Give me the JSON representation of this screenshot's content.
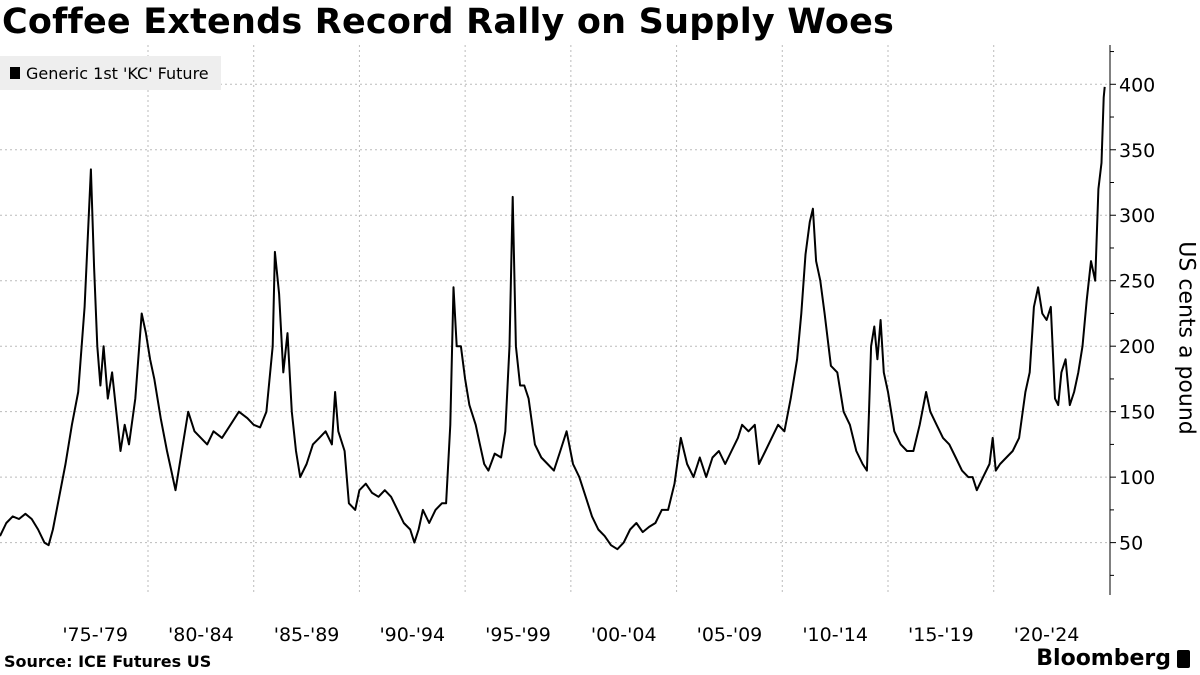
{
  "title": "Coffee Extends Record Rally on Supply Woes",
  "legend_label": "Generic 1st 'KC' Future",
  "source": "Source: ICE Futures US",
  "logo_text": "Bloomberg",
  "chart_data": {
    "type": "line",
    "title": "Coffee Extends Record Rally on Supply Woes",
    "ylabel": "US cents a pound",
    "xlabel": "",
    "ylim": [
      10,
      430
    ],
    "xlim": [
      1973.0,
      2025.5
    ],
    "yticks": [
      50,
      100,
      150,
      200,
      250,
      300,
      350,
      400
    ],
    "x_ticks": [
      {
        "label": "'75-'79",
        "value": 1975
      },
      {
        "label": "'80-'84",
        "value": 1980
      },
      {
        "label": "'85-'89",
        "value": 1985
      },
      {
        "label": "'90-'94",
        "value": 1990
      },
      {
        "label": "'95-'99",
        "value": 1995
      },
      {
        "label": "'00-'04",
        "value": 2000
      },
      {
        "label": "'05-'09",
        "value": 2005
      },
      {
        "label": "'10-'14",
        "value": 2010
      },
      {
        "label": "'15-'19",
        "value": 2015
      },
      {
        "label": "'20-'24",
        "value": 2020
      }
    ],
    "grid": true,
    "legend_position": "top-left",
    "line_color": "#000000",
    "series": [
      {
        "name": "Generic 1st 'KC' Future",
        "points": [
          [
            1973.0,
            55
          ],
          [
            1973.3,
            65
          ],
          [
            1973.6,
            70
          ],
          [
            1973.9,
            68
          ],
          [
            1974.2,
            72
          ],
          [
            1974.5,
            68
          ],
          [
            1974.8,
            60
          ],
          [
            1975.1,
            50
          ],
          [
            1975.3,
            48
          ],
          [
            1975.5,
            60
          ],
          [
            1975.8,
            85
          ],
          [
            1976.1,
            110
          ],
          [
            1976.4,
            140
          ],
          [
            1976.7,
            165
          ],
          [
            1977.0,
            230
          ],
          [
            1977.2,
            300
          ],
          [
            1977.3,
            335
          ],
          [
            1977.45,
            260
          ],
          [
            1977.6,
            200
          ],
          [
            1977.75,
            170
          ],
          [
            1977.9,
            200
          ],
          [
            1978.1,
            160
          ],
          [
            1978.3,
            180
          ],
          [
            1978.5,
            150
          ],
          [
            1978.7,
            120
          ],
          [
            1978.9,
            140
          ],
          [
            1979.1,
            125
          ],
          [
            1979.4,
            160
          ],
          [
            1979.7,
            225
          ],
          [
            1979.9,
            210
          ],
          [
            1980.1,
            190
          ],
          [
            1980.3,
            175
          ],
          [
            1980.6,
            145
          ],
          [
            1980.9,
            120
          ],
          [
            1981.1,
            105
          ],
          [
            1981.3,
            90
          ],
          [
            1981.6,
            120
          ],
          [
            1981.9,
            150
          ],
          [
            1982.2,
            135
          ],
          [
            1982.5,
            130
          ],
          [
            1982.8,
            125
          ],
          [
            1983.1,
            135
          ],
          [
            1983.5,
            130
          ],
          [
            1983.9,
            140
          ],
          [
            1984.3,
            150
          ],
          [
            1984.7,
            145
          ],
          [
            1985.0,
            140
          ],
          [
            1985.3,
            138
          ],
          [
            1985.6,
            150
          ],
          [
            1985.9,
            200
          ],
          [
            1986.0,
            272
          ],
          [
            1986.2,
            240
          ],
          [
            1986.4,
            180
          ],
          [
            1986.6,
            210
          ],
          [
            1986.8,
            150
          ],
          [
            1987.0,
            120
          ],
          [
            1987.2,
            100
          ],
          [
            1987.5,
            110
          ],
          [
            1987.8,
            125
          ],
          [
            1988.1,
            130
          ],
          [
            1988.4,
            135
          ],
          [
            1988.7,
            125
          ],
          [
            1988.85,
            165
          ],
          [
            1989.0,
            135
          ],
          [
            1989.3,
            120
          ],
          [
            1989.5,
            80
          ],
          [
            1989.8,
            75
          ],
          [
            1990.0,
            90
          ],
          [
            1990.3,
            95
          ],
          [
            1990.6,
            88
          ],
          [
            1990.9,
            85
          ],
          [
            1991.2,
            90
          ],
          [
            1991.5,
            85
          ],
          [
            1991.8,
            75
          ],
          [
            1992.1,
            65
          ],
          [
            1992.4,
            60
          ],
          [
            1992.6,
            50
          ],
          [
            1992.8,
            60
          ],
          [
            1993.0,
            75
          ],
          [
            1993.3,
            65
          ],
          [
            1993.6,
            75
          ],
          [
            1993.9,
            80
          ],
          [
            1994.1,
            80
          ],
          [
            1994.3,
            140
          ],
          [
            1994.45,
            245
          ],
          [
            1994.6,
            200
          ],
          [
            1994.8,
            200
          ],
          [
            1995.0,
            175
          ],
          [
            1995.2,
            155
          ],
          [
            1995.5,
            140
          ],
          [
            1995.7,
            125
          ],
          [
            1995.9,
            110
          ],
          [
            1996.1,
            105
          ],
          [
            1996.4,
            118
          ],
          [
            1996.7,
            115
          ],
          [
            1996.9,
            135
          ],
          [
            1997.1,
            200
          ],
          [
            1997.25,
            314
          ],
          [
            1997.4,
            200
          ],
          [
            1997.6,
            170
          ],
          [
            1997.8,
            170
          ],
          [
            1998.0,
            160
          ],
          [
            1998.3,
            125
          ],
          [
            1998.6,
            115
          ],
          [
            1998.9,
            110
          ],
          [
            1999.2,
            105
          ],
          [
            1999.5,
            120
          ],
          [
            1999.8,
            135
          ],
          [
            2000.1,
            110
          ],
          [
            2000.4,
            100
          ],
          [
            2000.7,
            85
          ],
          [
            2001.0,
            70
          ],
          [
            2001.3,
            60
          ],
          [
            2001.6,
            55
          ],
          [
            2001.9,
            48
          ],
          [
            2002.2,
            45
          ],
          [
            2002.5,
            50
          ],
          [
            2002.8,
            60
          ],
          [
            2003.1,
            65
          ],
          [
            2003.4,
            58
          ],
          [
            2003.7,
            62
          ],
          [
            2004.0,
            65
          ],
          [
            2004.3,
            75
          ],
          [
            2004.6,
            75
          ],
          [
            2004.9,
            95
          ],
          [
            2005.2,
            130
          ],
          [
            2005.5,
            110
          ],
          [
            2005.8,
            100
          ],
          [
            2006.1,
            115
          ],
          [
            2006.4,
            100
          ],
          [
            2006.7,
            115
          ],
          [
            2007.0,
            120
          ],
          [
            2007.3,
            110
          ],
          [
            2007.6,
            120
          ],
          [
            2007.9,
            130
          ],
          [
            2008.1,
            140
          ],
          [
            2008.4,
            135
          ],
          [
            2008.7,
            140
          ],
          [
            2008.9,
            110
          ],
          [
            2009.2,
            120
          ],
          [
            2009.5,
            130
          ],
          [
            2009.8,
            140
          ],
          [
            2010.1,
            135
          ],
          [
            2010.4,
            160
          ],
          [
            2010.7,
            190
          ],
          [
            2010.9,
            225
          ],
          [
            2011.1,
            270
          ],
          [
            2011.3,
            295
          ],
          [
            2011.45,
            305
          ],
          [
            2011.6,
            265
          ],
          [
            2011.8,
            250
          ],
          [
            2012.0,
            225
          ],
          [
            2012.3,
            185
          ],
          [
            2012.6,
            180
          ],
          [
            2012.9,
            150
          ],
          [
            2013.2,
            140
          ],
          [
            2013.5,
            120
          ],
          [
            2013.8,
            110
          ],
          [
            2014.0,
            105
          ],
          [
            2014.1,
            150
          ],
          [
            2014.2,
            200
          ],
          [
            2014.35,
            215
          ],
          [
            2014.5,
            190
          ],
          [
            2014.65,
            220
          ],
          [
            2014.8,
            180
          ],
          [
            2015.0,
            165
          ],
          [
            2015.3,
            135
          ],
          [
            2015.6,
            125
          ],
          [
            2015.9,
            120
          ],
          [
            2016.2,
            120
          ],
          [
            2016.5,
            140
          ],
          [
            2016.8,
            165
          ],
          [
            2017.0,
            150
          ],
          [
            2017.3,
            140
          ],
          [
            2017.6,
            130
          ],
          [
            2017.9,
            125
          ],
          [
            2018.2,
            115
          ],
          [
            2018.5,
            105
          ],
          [
            2018.8,
            100
          ],
          [
            2019.0,
            100
          ],
          [
            2019.2,
            90
          ],
          [
            2019.5,
            100
          ],
          [
            2019.8,
            110
          ],
          [
            2019.95,
            130
          ],
          [
            2020.1,
            105
          ],
          [
            2020.3,
            110
          ],
          [
            2020.6,
            115
          ],
          [
            2020.9,
            120
          ],
          [
            2021.2,
            130
          ],
          [
            2021.5,
            165
          ],
          [
            2021.7,
            180
          ],
          [
            2021.9,
            230
          ],
          [
            2022.1,
            245
          ],
          [
            2022.3,
            225
          ],
          [
            2022.5,
            220
          ],
          [
            2022.7,
            230
          ],
          [
            2022.9,
            160
          ],
          [
            2023.05,
            155
          ],
          [
            2023.2,
            180
          ],
          [
            2023.4,
            190
          ],
          [
            2023.6,
            155
          ],
          [
            2023.8,
            165
          ],
          [
            2024.0,
            180
          ],
          [
            2024.2,
            200
          ],
          [
            2024.4,
            235
          ],
          [
            2024.6,
            265
          ],
          [
            2024.8,
            250
          ],
          [
            2024.95,
            320
          ],
          [
            2025.1,
            340
          ],
          [
            2025.2,
            390
          ],
          [
            2025.25,
            398
          ]
        ]
      }
    ]
  }
}
